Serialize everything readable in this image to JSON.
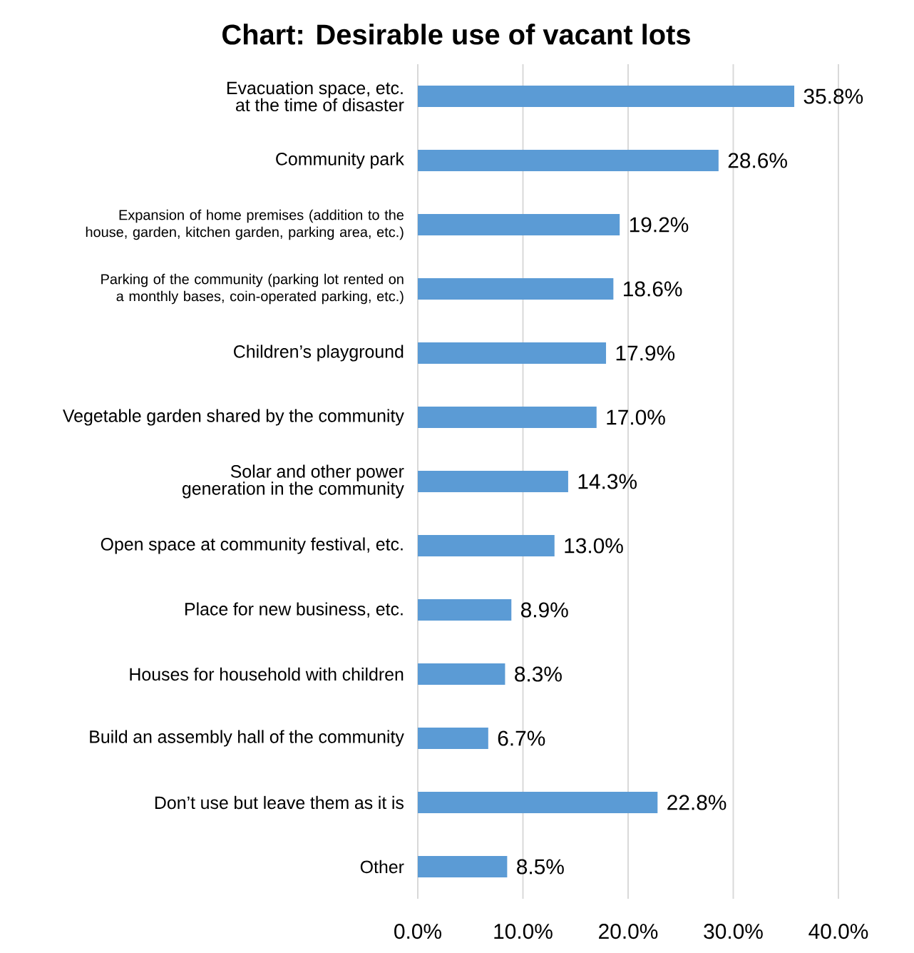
{
  "chart_data": {
    "type": "bar",
    "orientation": "horizontal",
    "title": "Chart: Desirable use of vacant lots",
    "categories": [
      "Evacuation space, etc. at the time of disaster",
      "Community park",
      "Expansion of home premises (addition to the house, garden, kitchen garden, parking area, etc.)",
      "Parking of the community (parking lot rented on a monthly bases, coin-operated parking, etc.)",
      "Children’s playground",
      "Vegetable garden shared by the community",
      "Solar and other power generation in the community",
      "Open space at community festival, etc.",
      "Place for new business, etc.",
      "Houses for household with children",
      "Build an assembly hall of the community",
      "Don’t use but leave them as it is",
      "Other"
    ],
    "values": [
      35.8,
      28.6,
      19.2,
      18.6,
      17.9,
      17.0,
      14.3,
      13.0,
      8.9,
      8.3,
      6.7,
      22.8,
      8.5
    ],
    "value_labels": [
      "35.8%",
      "28.6%",
      "19.2%",
      "18.6%",
      "17.9%",
      "17.0%",
      "14.3%",
      "13.0%",
      "8.9%",
      "8.3%",
      "6.7%",
      "22.8%",
      "8.5%"
    ],
    "color": "#5b9bd5",
    "xlim": [
      0,
      40
    ],
    "xticks": [
      {
        "value": 0,
        "label": "0.0%"
      },
      {
        "value": 10,
        "label": "10.0%"
      },
      {
        "value": 20,
        "label": "20.0%"
      },
      {
        "value": 30,
        "label": "30.0%"
      },
      {
        "value": 40,
        "label": "40.0%"
      }
    ],
    "grid": "x"
  }
}
